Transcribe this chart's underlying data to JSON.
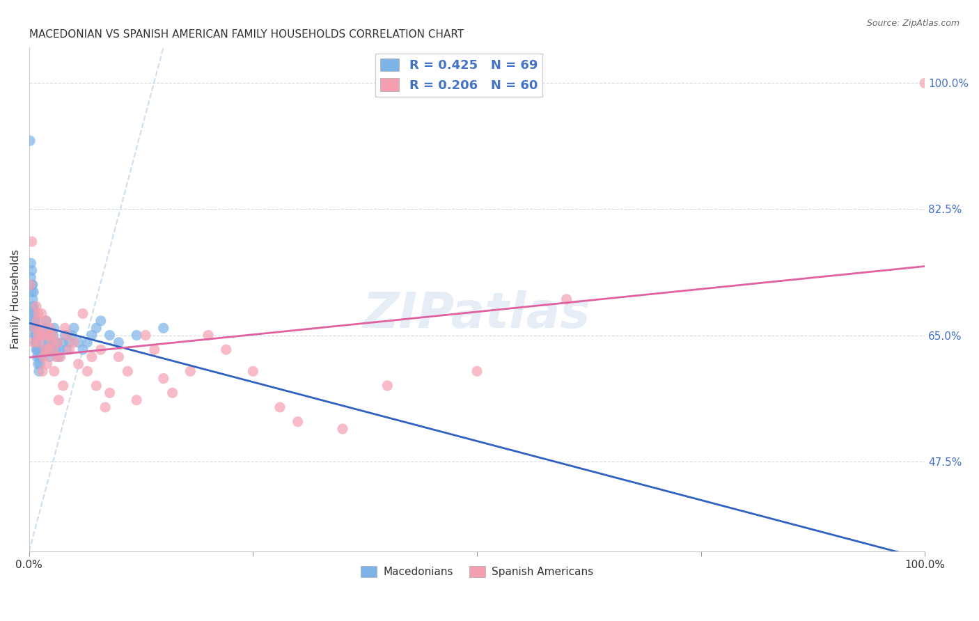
{
  "title": "MACEDONIAN VS SPANISH AMERICAN FAMILY HOUSEHOLDS CORRELATION CHART",
  "source": "Source: ZipAtlas.com",
  "xlabel": "",
  "ylabel": "Family Households",
  "xlim": [
    0,
    1.0
  ],
  "ylim": [
    0.35,
    1.05
  ],
  "x_ticks": [
    0,
    0.25,
    0.5,
    0.75,
    1.0
  ],
  "x_tick_labels": [
    "0.0%",
    "",
    "",
    "",
    "100.0%"
  ],
  "y_tick_labels_right": [
    "47.5%",
    "65.0%",
    "82.5%",
    "100.0%"
  ],
  "y_tick_values_right": [
    0.475,
    0.65,
    0.825,
    1.0
  ],
  "legend_r1": "R = 0.425   N = 69",
  "legend_r2": "R = 0.206   N = 60",
  "blue_color": "#7EB3E8",
  "pink_color": "#F5A0B0",
  "blue_dark": "#4472C4",
  "pink_dark": "#E87AA0",
  "title_fontsize": 11,
  "watermark": "ZIPatlas",
  "macedonian_x": [
    0.001,
    0.002,
    0.002,
    0.003,
    0.003,
    0.003,
    0.004,
    0.004,
    0.004,
    0.004,
    0.005,
    0.005,
    0.005,
    0.005,
    0.005,
    0.006,
    0.006,
    0.006,
    0.006,
    0.007,
    0.007,
    0.007,
    0.007,
    0.008,
    0.008,
    0.008,
    0.009,
    0.009,
    0.009,
    0.01,
    0.01,
    0.011,
    0.011,
    0.012,
    0.012,
    0.013,
    0.014,
    0.015,
    0.016,
    0.018,
    0.019,
    0.02,
    0.021,
    0.022,
    0.023,
    0.025,
    0.026,
    0.027,
    0.028,
    0.03,
    0.031,
    0.033,
    0.035,
    0.038,
    0.04,
    0.042,
    0.045,
    0.048,
    0.05,
    0.055,
    0.06,
    0.065,
    0.07,
    0.075,
    0.08,
    0.09,
    0.1,
    0.12,
    0.15
  ],
  "macedonian_y": [
    0.92,
    0.73,
    0.75,
    0.71,
    0.72,
    0.74,
    0.68,
    0.69,
    0.7,
    0.72,
    0.66,
    0.67,
    0.68,
    0.69,
    0.71,
    0.65,
    0.66,
    0.67,
    0.68,
    0.64,
    0.65,
    0.66,
    0.67,
    0.63,
    0.64,
    0.65,
    0.62,
    0.63,
    0.65,
    0.61,
    0.63,
    0.6,
    0.62,
    0.61,
    0.63,
    0.62,
    0.63,
    0.64,
    0.65,
    0.66,
    0.67,
    0.65,
    0.64,
    0.63,
    0.62,
    0.63,
    0.64,
    0.65,
    0.66,
    0.63,
    0.64,
    0.62,
    0.63,
    0.64,
    0.65,
    0.63,
    0.64,
    0.65,
    0.66,
    0.64,
    0.63,
    0.64,
    0.65,
    0.66,
    0.67,
    0.65,
    0.64,
    0.65,
    0.66
  ],
  "spanish_x": [
    0.001,
    0.003,
    0.005,
    0.007,
    0.008,
    0.009,
    0.01,
    0.01,
    0.011,
    0.012,
    0.013,
    0.014,
    0.015,
    0.016,
    0.017,
    0.018,
    0.019,
    0.02,
    0.021,
    0.022,
    0.023,
    0.025,
    0.026,
    0.027,
    0.028,
    0.03,
    0.032,
    0.033,
    0.035,
    0.038,
    0.04,
    0.042,
    0.045,
    0.05,
    0.055,
    0.06,
    0.065,
    0.07,
    0.075,
    0.08,
    0.085,
    0.09,
    0.1,
    0.11,
    0.12,
    0.13,
    0.14,
    0.15,
    0.16,
    0.18,
    0.2,
    0.22,
    0.25,
    0.28,
    0.3,
    0.35,
    0.4,
    0.5,
    0.6,
    1.0
  ],
  "spanish_y": [
    0.72,
    0.78,
    0.64,
    0.66,
    0.69,
    0.67,
    0.65,
    0.68,
    0.64,
    0.66,
    0.65,
    0.68,
    0.6,
    0.62,
    0.65,
    0.63,
    0.67,
    0.61,
    0.63,
    0.65,
    0.66,
    0.64,
    0.65,
    0.63,
    0.6,
    0.62,
    0.64,
    0.56,
    0.62,
    0.58,
    0.66,
    0.65,
    0.63,
    0.64,
    0.61,
    0.68,
    0.6,
    0.62,
    0.58,
    0.63,
    0.55,
    0.57,
    0.62,
    0.6,
    0.56,
    0.65,
    0.63,
    0.59,
    0.57,
    0.6,
    0.65,
    0.63,
    0.6,
    0.55,
    0.53,
    0.52,
    0.58,
    0.6,
    0.7,
    1.0
  ]
}
